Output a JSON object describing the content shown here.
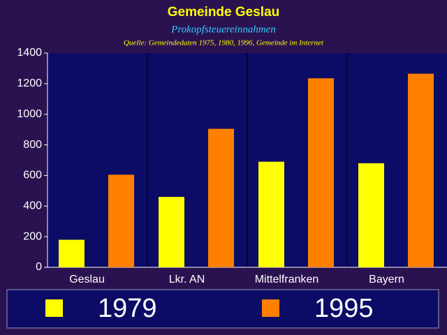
{
  "chart_data": {
    "type": "bar",
    "title": "Gemeinde Geslau",
    "subtitle": "Prokopfsteuereinnahmen",
    "source": "Quelle: Gemeindedaten 1975, 1980, 1996, Gemeinde im Internet",
    "categories": [
      "Geslau",
      "Lkr. AN",
      "Mittelfranken",
      "Bayern"
    ],
    "series": [
      {
        "name": "1979",
        "color": "#ffff00",
        "values": [
          180,
          460,
          690,
          680
        ]
      },
      {
        "name": "1995",
        "color": "#ff8000",
        "values": [
          605,
          905,
          1235,
          1265
        ]
      }
    ],
    "ylim": [
      0,
      1400
    ],
    "yticks": [
      0,
      200,
      400,
      600,
      800,
      1000,
      1200,
      1400
    ],
    "legend": "bottom"
  }
}
